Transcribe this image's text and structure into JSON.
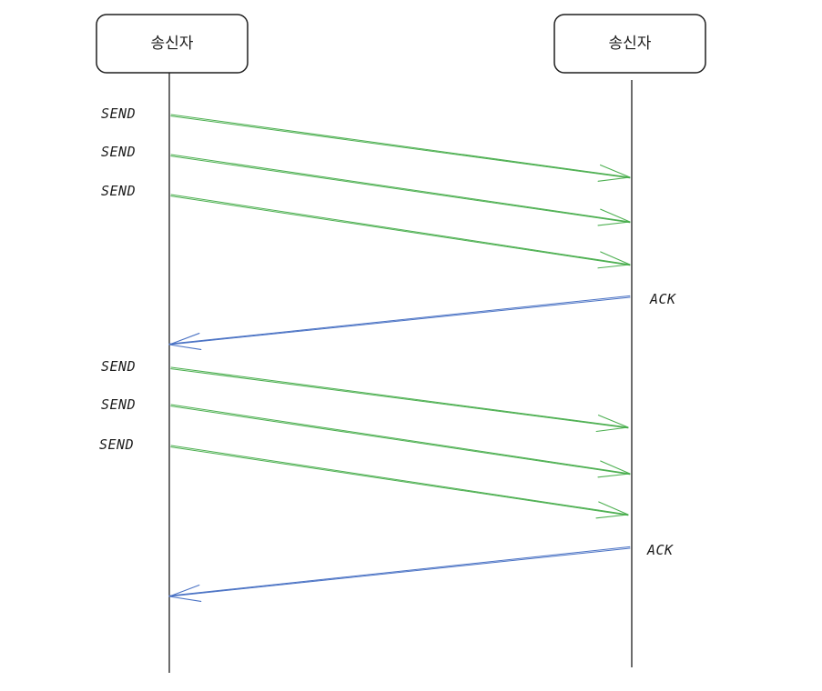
{
  "actors": {
    "left": {
      "label": "송신자"
    },
    "right": {
      "label": "송신자"
    }
  },
  "colors": {
    "send": "#4caf50",
    "ack": "#4a72c4",
    "line": "#1e1e1e"
  },
  "messages": [
    {
      "kind": "send",
      "label": "SEND"
    },
    {
      "kind": "send",
      "label": "SEND"
    },
    {
      "kind": "send",
      "label": "SEND"
    },
    {
      "kind": "ack",
      "label": "ACK"
    },
    {
      "kind": "send",
      "label": "SEND"
    },
    {
      "kind": "send",
      "label": "SEND"
    },
    {
      "kind": "send",
      "label": "SEND"
    },
    {
      "kind": "ack",
      "label": "ACK"
    }
  ]
}
